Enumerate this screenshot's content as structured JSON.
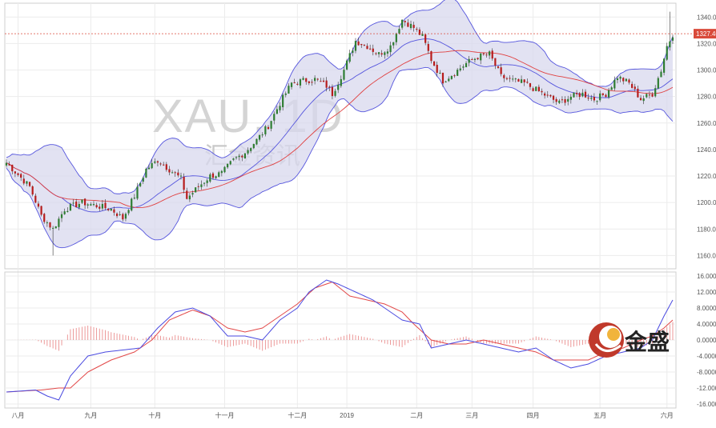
{
  "watermark": {
    "symbol": "XAU, 1D",
    "cn_text": "汇金资讯"
  },
  "brand": {
    "name": "金盛"
  },
  "price_label": "1327.40",
  "colors": {
    "up": "#2e7d32",
    "down": "#b71c1c",
    "band_fill": "#d8d8ee",
    "band_line": "#5555dd",
    "ma_line": "#e04040",
    "price_tag": "#d94a3a"
  },
  "chart_data": [
    {
      "type": "candlestick",
      "x_ticks": [
        "八月",
        "九月",
        "十月",
        "十一月",
        "十二月",
        "2019",
        "二月",
        "三月",
        "四月",
        "五月",
        "六月"
      ],
      "y_ticks": [
        "1160.00",
        "1180.00",
        "1200.00",
        "1220.00",
        "1240.00",
        "1260.00",
        "1280.00",
        "1300.00",
        "1320.00",
        "1340.00"
      ],
      "ylim": [
        1150,
        1348
      ],
      "overlays": [
        "Bollinger upper",
        "Bollinger middle",
        "Bollinger lower",
        "moving average"
      ],
      "last_price": 1327.4,
      "close_waypoints": [
        [
          0,
          1230
        ],
        [
          8,
          1212
        ],
        [
          12,
          1190
        ],
        [
          16,
          1180
        ],
        [
          20,
          1195
        ],
        [
          26,
          1200
        ],
        [
          30,
          1198
        ],
        [
          36,
          1195
        ],
        [
          40,
          1188
        ],
        [
          44,
          1205
        ],
        [
          48,
          1225
        ],
        [
          52,
          1232
        ],
        [
          56,
          1225
        ],
        [
          60,
          1218
        ],
        [
          62,
          1203
        ],
        [
          66,
          1212
        ],
        [
          70,
          1220
        ],
        [
          74,
          1222
        ],
        [
          78,
          1232
        ],
        [
          82,
          1238
        ],
        [
          86,
          1247
        ],
        [
          90,
          1258
        ],
        [
          94,
          1275
        ],
        [
          98,
          1290
        ],
        [
          102,
          1292
        ],
        [
          106,
          1293
        ],
        [
          110,
          1288
        ],
        [
          112,
          1282
        ],
        [
          116,
          1300
        ],
        [
          120,
          1322
        ],
        [
          124,
          1318
        ],
        [
          128,
          1312
        ],
        [
          132,
          1318
        ],
        [
          136,
          1338
        ],
        [
          140,
          1332
        ],
        [
          143,
          1325
        ],
        [
          146,
          1308
        ],
        [
          150,
          1292
        ],
        [
          154,
          1298
        ],
        [
          158,
          1305
        ],
        [
          162,
          1310
        ],
        [
          166,
          1312
        ],
        [
          170,
          1295
        ],
        [
          174,
          1292
        ],
        [
          178,
          1290
        ],
        [
          182,
          1285
        ],
        [
          186,
          1280
        ],
        [
          190,
          1275
        ],
        [
          194,
          1280
        ],
        [
          198,
          1282
        ],
        [
          202,
          1278
        ],
        [
          206,
          1282
        ],
        [
          210,
          1295
        ],
        [
          214,
          1290
        ],
        [
          218,
          1278
        ],
        [
          222,
          1282
        ],
        [
          225,
          1300
        ],
        [
          227,
          1318
        ],
        [
          229,
          1327
        ]
      ]
    },
    {
      "type": "macd",
      "y_ticks": [
        "-16.0000",
        "-12.0000",
        "-8.0000",
        "-4.0000",
        "0.0000",
        "4.0000",
        "8.0000",
        "12.0000",
        "16.0000"
      ],
      "ylim": [
        -17,
        17
      ],
      "macd_waypoints": [
        [
          0,
          -13
        ],
        [
          10,
          -12.5
        ],
        [
          14,
          -14
        ],
        [
          18,
          -15
        ],
        [
          22,
          -9
        ],
        [
          28,
          -4
        ],
        [
          34,
          -3
        ],
        [
          40,
          -2.5
        ],
        [
          46,
          -2
        ],
        [
          52,
          3
        ],
        [
          58,
          7
        ],
        [
          64,
          8
        ],
        [
          70,
          6
        ],
        [
          76,
          1
        ],
        [
          82,
          1
        ],
        [
          88,
          0
        ],
        [
          94,
          5
        ],
        [
          100,
          8
        ],
        [
          104,
          12
        ],
        [
          110,
          15
        ],
        [
          114,
          14
        ],
        [
          120,
          12
        ],
        [
          126,
          10
        ],
        [
          130,
          8
        ],
        [
          136,
          5
        ],
        [
          142,
          4
        ],
        [
          146,
          -2
        ],
        [
          152,
          -1
        ],
        [
          158,
          0
        ],
        [
          164,
          -1
        ],
        [
          170,
          -2
        ],
        [
          176,
          -3
        ],
        [
          182,
          -2
        ],
        [
          188,
          -5
        ],
        [
          194,
          -7
        ],
        [
          200,
          -6
        ],
        [
          206,
          -4
        ],
        [
          212,
          -3
        ],
        [
          218,
          -2
        ],
        [
          222,
          0
        ],
        [
          226,
          6
        ],
        [
          229,
          10
        ]
      ],
      "signal_waypoints": [
        [
          0,
          -13
        ],
        [
          12,
          -12.5
        ],
        [
          18,
          -12
        ],
        [
          22,
          -12
        ],
        [
          28,
          -8
        ],
        [
          36,
          -5
        ],
        [
          44,
          -3
        ],
        [
          50,
          0
        ],
        [
          56,
          5
        ],
        [
          64,
          7.5
        ],
        [
          70,
          6
        ],
        [
          76,
          3
        ],
        [
          82,
          2
        ],
        [
          88,
          3
        ],
        [
          94,
          6
        ],
        [
          100,
          9
        ],
        [
          106,
          13
        ],
        [
          112,
          14.5
        ],
        [
          118,
          11
        ],
        [
          124,
          10
        ],
        [
          130,
          9
        ],
        [
          136,
          7
        ],
        [
          140,
          4
        ],
        [
          146,
          0
        ],
        [
          152,
          -1
        ],
        [
          158,
          -1
        ],
        [
          164,
          0
        ],
        [
          170,
          -1
        ],
        [
          176,
          -2
        ],
        [
          182,
          -3
        ],
        [
          188,
          -5
        ],
        [
          194,
          -5
        ],
        [
          200,
          -5
        ],
        [
          206,
          -3
        ],
        [
          212,
          -2
        ],
        [
          218,
          0
        ],
        [
          222,
          1
        ],
        [
          226,
          3
        ],
        [
          229,
          5
        ]
      ]
    }
  ]
}
